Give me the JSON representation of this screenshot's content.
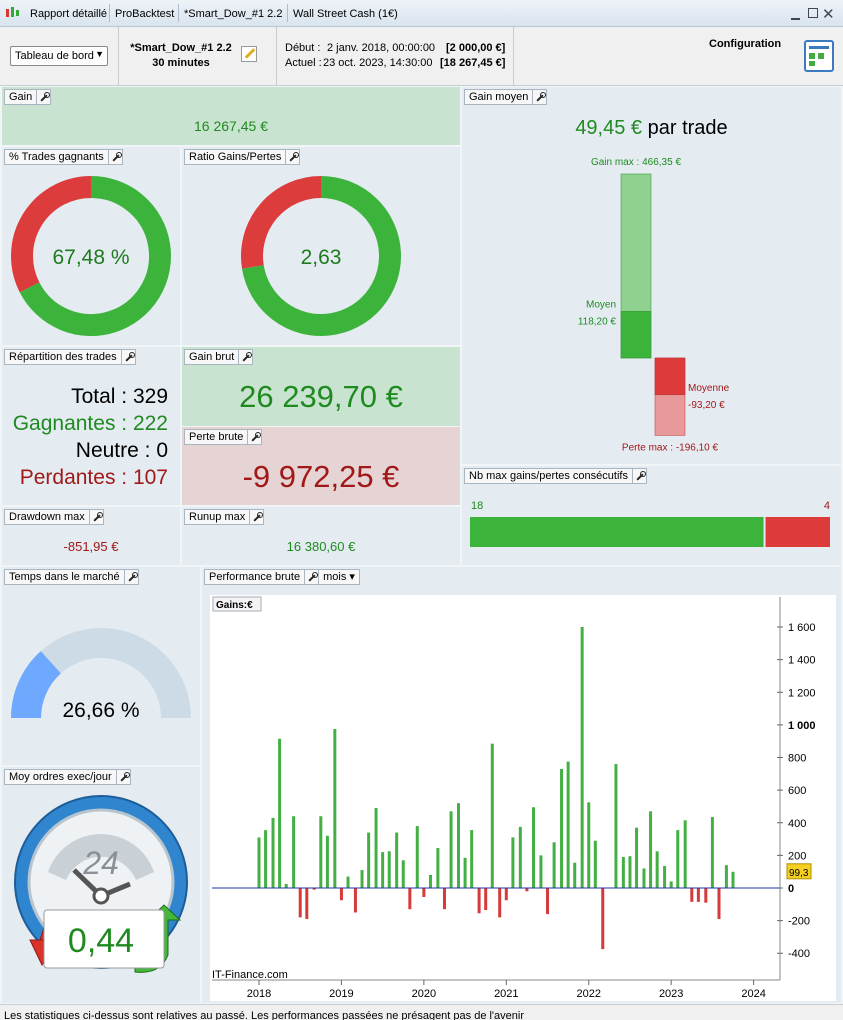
{
  "window": {
    "tabs": [
      "Rapport détaillé",
      "ProBacktest",
      "*Smart_Dow_#1 2.2",
      "Wall Street Cash (1€)"
    ]
  },
  "toolbar": {
    "dropdown": "Tableau de bord",
    "system": "*Smart_Dow_#1 2.2",
    "timeframe": "30 minutes",
    "start_label": "Début :",
    "start_date": "2 janv. 2018, 00:00:00",
    "start_value": "[2 000,00 €]",
    "current_label": "Actuel :",
    "current_date": "23 oct. 2023, 14:30:00",
    "current_value": "[18 267,45 €]",
    "config": "Configuration"
  },
  "panels": {
    "gain": {
      "title": "Gain",
      "value": "16 267,45 €"
    },
    "win_rate": {
      "title": "% Trades gagnants",
      "value": 67.48,
      "value_label": "67,48 %",
      "colors": [
        "#3cb43c",
        "#dd3c3c"
      ]
    },
    "ratio": {
      "title": "Ratio Gains/Pertes",
      "value": 2.63,
      "value_label": "2,63",
      "colors": [
        "#3cb43c",
        "#dd3c3c"
      ]
    },
    "gain_moyen": {
      "title": "Gain moyen",
      "headline": "49,45 €",
      "headline_suffix": "par trade",
      "bars": [
        {
          "label": "Gain max :",
          "value": 466.35,
          "value_label": "466,35 €",
          "color": "#8fd18f"
        },
        {
          "label": "Moyen",
          "value": 118.2,
          "value_label": "118,20 €",
          "color": "#3cb43c"
        },
        {
          "label": "Moyenne",
          "value": -93.2,
          "value_label": "-93,20 €",
          "color": "#dd3a3a"
        },
        {
          "label": "Perte max :",
          "value": -196.1,
          "value_label": "-196,10 €",
          "color": "#e89a9a"
        }
      ]
    },
    "repartition": {
      "title": "Répartition des trades",
      "rows": [
        "Total : 329",
        "Gagnantes : 222",
        "Neutre : 0",
        "Perdantes : 107"
      ]
    },
    "gain_brut": {
      "title": "Gain brut",
      "value": "26 239,70 €"
    },
    "perte_brute": {
      "title": "Perte brute",
      "value": "-9 972,25 €"
    },
    "drawdown": {
      "title": "Drawdown max",
      "value": "-851,95 €"
    },
    "runup": {
      "title": "Runup max",
      "value": "16 380,60 €"
    },
    "consecutive": {
      "title": "Nb max gains/pertes consécutifs",
      "values": [
        18,
        4
      ],
      "colors": [
        "#3cb43c",
        "#dd3a3a"
      ]
    },
    "time_in_market": {
      "title": "Temps dans le marché",
      "value": 26.66,
      "value_label": "26,66 %",
      "colors": [
        "#6fa8ff",
        "#cddbe6"
      ]
    },
    "orders": {
      "title": "Moy ordres exec/jour",
      "icon_label": "24",
      "value": "0,44"
    }
  },
  "chart_data": {
    "type": "bar",
    "title": "Performance brute",
    "period": "mois",
    "axis_label": "Gains:€",
    "watermark": "IT-Finance.com",
    "last_value_label": "99,3",
    "colors": {
      "positive": "#44b044",
      "negative": "#d63a3a",
      "zero_line": "#2030a0"
    },
    "x": [
      2018,
      2018.08,
      2018.17,
      2018.25,
      2018.33,
      2018.42,
      2018.5,
      2018.58,
      2018.67,
      2018.75,
      2018.83,
      2018.92,
      2019,
      2019.08,
      2019.17,
      2019.25,
      2019.33,
      2019.42,
      2019.5,
      2019.58,
      2019.67,
      2019.75,
      2019.83,
      2019.92,
      2020,
      2020.08,
      2020.17,
      2020.25,
      2020.33,
      2020.42,
      2020.5,
      2020.58,
      2020.67,
      2020.75,
      2020.83,
      2020.92,
      2021,
      2021.08,
      2021.17,
      2021.25,
      2021.33,
      2021.42,
      2021.5,
      2021.58,
      2021.67,
      2021.75,
      2021.83,
      2021.92,
      2022,
      2022.08,
      2022.17,
      2022.25,
      2022.33,
      2022.42,
      2022.5,
      2022.58,
      2022.67,
      2022.75,
      2022.83,
      2022.92,
      2023,
      2023.08,
      2023.17,
      2023.25,
      2023.33,
      2023.42,
      2023.5,
      2023.58,
      2023.67,
      2023.75
    ],
    "values": [
      310,
      355,
      430,
      915,
      25,
      440,
      -180,
      -190,
      -10,
      440,
      320,
      975,
      -75,
      70,
      -150,
      110,
      340,
      490,
      220,
      225,
      340,
      170,
      -130,
      380,
      -55,
      80,
      245,
      -130,
      470,
      520,
      185,
      355,
      -155,
      -135,
      885,
      -180,
      -75,
      310,
      375,
      -20,
      495,
      200,
      -160,
      280,
      730,
      775,
      155,
      1600,
      525,
      290,
      -375,
      0,
      760,
      190,
      195,
      370,
      120,
      470,
      225,
      135,
      40,
      355,
      415,
      -85,
      -85,
      -90,
      435,
      -190,
      140,
      99.3
    ],
    "xlim": [
      2017.43,
      2024.32
    ],
    "xticks": [
      2018,
      2019,
      2020,
      2021,
      2022,
      2023,
      2024
    ],
    "ylim": [
      -564,
      1784
    ],
    "yticks": [
      -400,
      -200,
      0,
      200,
      400,
      600,
      800,
      {
        "value": 1000,
        "label": "1 000"
      },
      {
        "value": 1200,
        "label": "1 200"
      },
      {
        "value": 1400,
        "label": "1 400"
      },
      {
        "value": 1600,
        "label": "1 600"
      }
    ]
  },
  "footer": "Les statistiques ci-dessus sont relatives au passé. Les performances passées ne présagent pas de l'avenir"
}
